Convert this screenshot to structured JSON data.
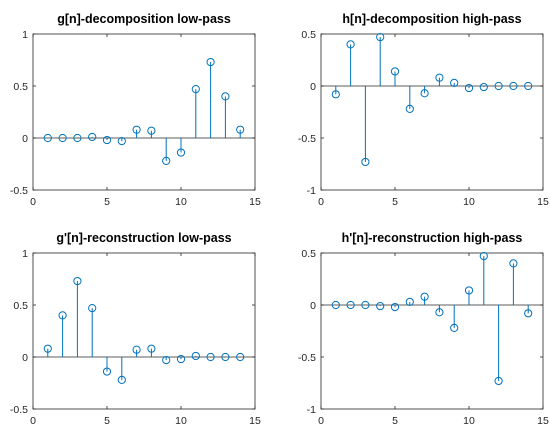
{
  "colors": {
    "stem": "#0072BD",
    "axis": "#262626"
  },
  "chart_data": [
    {
      "type": "stem",
      "title": "g[n]-decomposition low-pass",
      "x": [
        1,
        2,
        3,
        4,
        5,
        6,
        7,
        8,
        9,
        10,
        11,
        12,
        13,
        14
      ],
      "values": [
        0.0,
        0.0,
        0.0,
        0.01,
        -0.02,
        -0.03,
        0.08,
        0.07,
        -0.22,
        -0.14,
        0.47,
        0.73,
        0.4,
        0.08
      ],
      "xlim": [
        0,
        15
      ],
      "ylim": [
        -0.5,
        1
      ],
      "xticks": [
        0,
        5,
        10,
        15
      ],
      "yticks": [
        -0.5,
        0,
        0.5,
        1
      ],
      "xtick_labels": [
        "0",
        "5",
        "10",
        "15"
      ],
      "ytick_labels": [
        "-0.5",
        "0",
        "0.5",
        "1"
      ]
    },
    {
      "type": "stem",
      "title": "h[n]-decomposition high-pass",
      "x": [
        1,
        2,
        3,
        4,
        5,
        6,
        7,
        8,
        9,
        10,
        11,
        12,
        13,
        14
      ],
      "values": [
        -0.08,
        0.4,
        -0.73,
        0.47,
        0.14,
        -0.22,
        -0.07,
        0.08,
        0.03,
        -0.02,
        -0.01,
        0.0,
        0.0,
        0.0
      ],
      "xlim": [
        0,
        15
      ],
      "ylim": [
        -1,
        0.5
      ],
      "xticks": [
        0,
        5,
        10,
        15
      ],
      "yticks": [
        -1,
        -0.5,
        0,
        0.5
      ],
      "xtick_labels": [
        "0",
        "5",
        "10",
        "15"
      ],
      "ytick_labels": [
        "-1",
        "-0.5",
        "0",
        "0.5"
      ]
    },
    {
      "type": "stem",
      "title": "g'[n]-reconstruction low-pass",
      "x": [
        1,
        2,
        3,
        4,
        5,
        6,
        7,
        8,
        9,
        10,
        11,
        12,
        13,
        14
      ],
      "values": [
        0.08,
        0.4,
        0.73,
        0.47,
        -0.14,
        -0.22,
        0.07,
        0.08,
        -0.03,
        -0.02,
        0.01,
        0.0,
        0.0,
        0.0
      ],
      "xlim": [
        0,
        15
      ],
      "ylim": [
        -0.5,
        1
      ],
      "xticks": [
        0,
        5,
        10,
        15
      ],
      "yticks": [
        -0.5,
        0,
        0.5,
        1
      ],
      "xtick_labels": [
        "0",
        "5",
        "10",
        "15"
      ],
      "ytick_labels": [
        "-0.5",
        "0",
        "0.5",
        "1"
      ]
    },
    {
      "type": "stem",
      "title": "h'[n]-reconstruction high-pass",
      "x": [
        1,
        2,
        3,
        4,
        5,
        6,
        7,
        8,
        9,
        10,
        11,
        12,
        13,
        14
      ],
      "values": [
        0.0,
        0.0,
        0.0,
        -0.01,
        -0.02,
        0.03,
        0.08,
        -0.07,
        -0.22,
        0.14,
        0.47,
        -0.73,
        0.4,
        -0.08
      ],
      "xlim": [
        0,
        15
      ],
      "ylim": [
        -1,
        0.5
      ],
      "xticks": [
        0,
        5,
        10,
        15
      ],
      "yticks": [
        -1,
        -0.5,
        0,
        0.5
      ],
      "xtick_labels": [
        "0",
        "5",
        "10",
        "15"
      ],
      "ytick_labels": [
        "-1",
        "-0.5",
        "0",
        "0.5"
      ]
    }
  ]
}
